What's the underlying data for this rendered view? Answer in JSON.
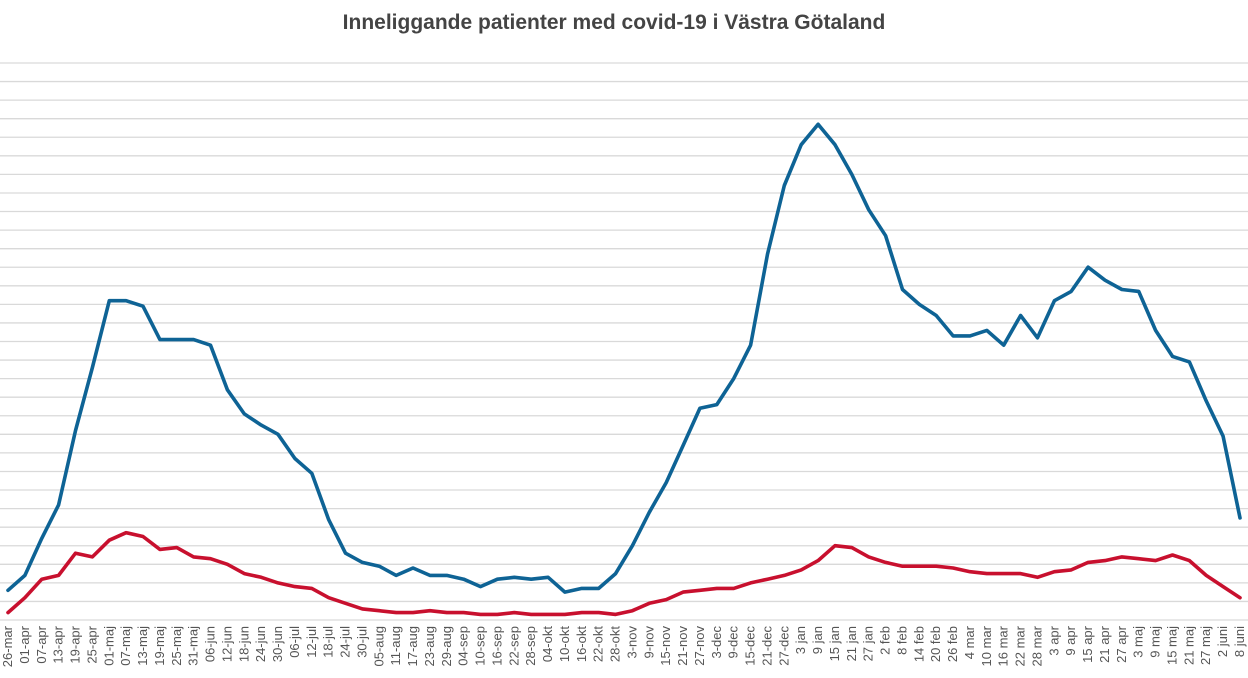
{
  "chart_data": {
    "type": "line",
    "title": "Inneliggande patienter med covid-19 i Västra Götaland",
    "xlabel": "",
    "ylabel": "",
    "y_tick_labels_shown": false,
    "y_unit_note": "values in gridline steps (no y-axis labels printed)",
    "ylim": [
      0,
      30
    ],
    "grid": true,
    "legend": "none",
    "categories": [
      "26-mar",
      "01-apr",
      "07-apr",
      "13-apr",
      "19-apr",
      "25-apr",
      "01-maj",
      "07-maj",
      "13-maj",
      "19-maj",
      "25-maj",
      "31-maj",
      "06-jun",
      "12-jun",
      "18-jun",
      "24-jun",
      "30-jun",
      "06-jul",
      "12-jul",
      "18-jul",
      "24-jul",
      "30-jul",
      "05-aug",
      "11-aug",
      "17-aug",
      "23-aug",
      "29-aug",
      "04-sep",
      "10-sep",
      "16-sep",
      "22-sep",
      "28-sep",
      "04-okt",
      "10-okt",
      "16-okt",
      "22-okt",
      "28-okt",
      "3-nov",
      "9-nov",
      "15-nov",
      "21-nov",
      "27-nov",
      "3-dec",
      "9-dec",
      "15-dec",
      "21-dec",
      "27-dec",
      "3 jan",
      "9 jan",
      "15 jan",
      "21 jan",
      "27 jan",
      "2 feb",
      "8 feb",
      "14 feb",
      "20 feb",
      "26 feb",
      "4 mar",
      "10 mar",
      "16 mar",
      "22 mar",
      "28 mar",
      "3 apr",
      "9 apr",
      "15 apr",
      "21 apr",
      "27 apr",
      "3 maj",
      "9 maj",
      "15 maj",
      "21 maj",
      "27 maj",
      "2 juni",
      "8 juni"
    ],
    "series": [
      {
        "color": "#0e6395",
        "values": [
          1.6,
          2.4,
          4.4,
          6.2,
          10.2,
          13.6,
          17.2,
          17.2,
          16.9,
          15.1,
          15.1,
          15.1,
          14.8,
          12.4,
          11.1,
          10.5,
          10.0,
          8.7,
          7.9,
          5.4,
          3.6,
          3.1,
          2.9,
          2.4,
          2.8,
          2.4,
          2.4,
          2.2,
          1.8,
          2.2,
          2.3,
          2.2,
          2.3,
          1.5,
          1.7,
          1.7,
          2.5,
          4.0,
          5.8,
          7.4,
          9.4,
          11.4,
          11.6,
          13.0,
          14.8,
          19.7,
          23.4,
          25.6,
          26.7,
          25.6,
          24.0,
          22.1,
          20.7,
          17.8,
          17.0,
          16.4,
          15.3,
          15.3,
          15.6,
          14.8,
          16.4,
          15.2,
          17.2,
          17.7,
          19.0,
          18.3,
          17.8,
          17.7,
          15.6,
          14.2,
          13.9,
          11.8,
          9.9,
          5.5
        ]
      },
      {
        "color": "#c8102e",
        "values": [
          0.4,
          1.2,
          2.2,
          2.4,
          3.6,
          3.4,
          4.3,
          4.7,
          4.5,
          3.8,
          3.9,
          3.4,
          3.3,
          3.0,
          2.5,
          2.3,
          2.0,
          1.8,
          1.7,
          1.2,
          0.9,
          0.6,
          0.5,
          0.4,
          0.4,
          0.5,
          0.4,
          0.4,
          0.3,
          0.3,
          0.4,
          0.3,
          0.3,
          0.3,
          0.4,
          0.4,
          0.3,
          0.5,
          0.9,
          1.1,
          1.5,
          1.6,
          1.7,
          1.7,
          2.0,
          2.2,
          2.4,
          2.7,
          3.2,
          4.0,
          3.9,
          3.4,
          3.1,
          2.9,
          2.9,
          2.9,
          2.8,
          2.6,
          2.5,
          2.5,
          2.5,
          2.3,
          2.6,
          2.7,
          3.1,
          3.2,
          3.4,
          3.3,
          3.2,
          3.5,
          3.2,
          2.4,
          1.8,
          1.2
        ]
      }
    ]
  }
}
